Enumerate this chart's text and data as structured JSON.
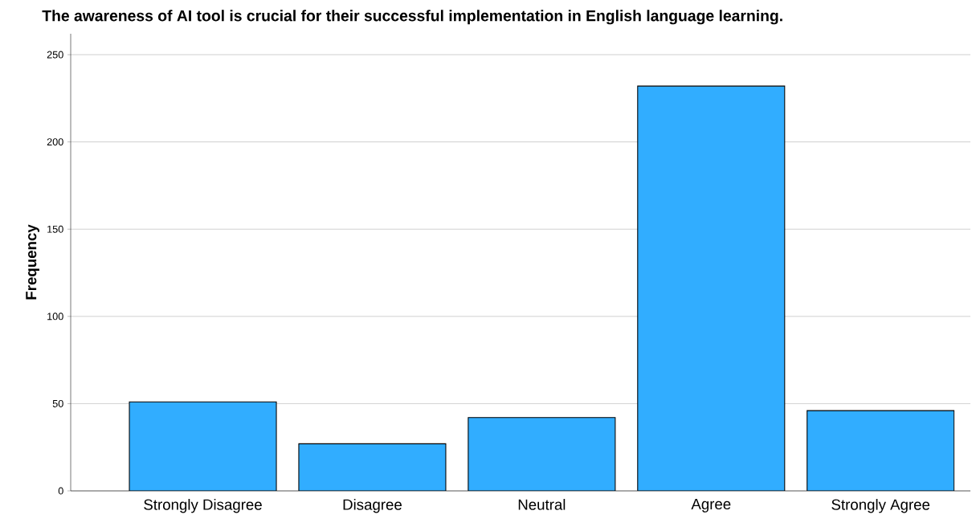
{
  "chart_data": {
    "type": "bar",
    "title": "The awareness of AI tool is crucial for their successful implementation in English language learning.",
    "ylabel": "Frequency",
    "categories": [
      "Strongly Disagree",
      "Disagree",
      "Neutral",
      "Agree",
      "Strongly Agree"
    ],
    "values": [
      51,
      27,
      42,
      232,
      46
    ],
    "color": "#31adff",
    "ylim": [
      0,
      262
    ],
    "yticks": [
      0,
      50,
      100,
      150,
      200,
      250
    ],
    "grid": "y"
  }
}
